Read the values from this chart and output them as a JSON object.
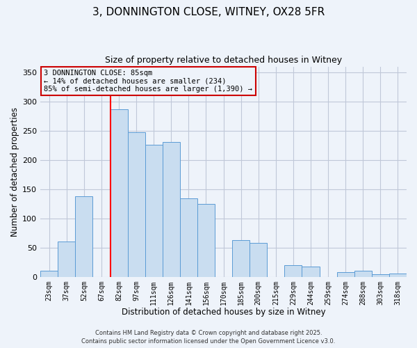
{
  "title": "3, DONNINGTON CLOSE, WITNEY, OX28 5FR",
  "subtitle": "Size of property relative to detached houses in Witney",
  "xlabel": "Distribution of detached houses by size in Witney",
  "ylabel": "Number of detached properties",
  "bar_labels": [
    "23sqm",
    "37sqm",
    "52sqm",
    "67sqm",
    "82sqm",
    "97sqm",
    "111sqm",
    "126sqm",
    "141sqm",
    "156sqm",
    "170sqm",
    "185sqm",
    "200sqm",
    "215sqm",
    "229sqm",
    "244sqm",
    "259sqm",
    "274sqm",
    "288sqm",
    "303sqm",
    "318sqm"
  ],
  "bar_values": [
    10,
    60,
    138,
    0,
    287,
    247,
    226,
    231,
    134,
    125,
    0,
    63,
    58,
    0,
    20,
    17,
    0,
    8,
    10,
    5,
    6
  ],
  "bar_color": "#c9ddf0",
  "bar_edge_color": "#5b9bd5",
  "grid_color": "#c0c8d8",
  "background_color": "#eef3fa",
  "vline_color": "red",
  "vline_x": 3.5,
  "annotation_title": "3 DONNINGTON CLOSE: 85sqm",
  "annotation_line1": "← 14% of detached houses are smaller (234)",
  "annotation_line2": "85% of semi-detached houses are larger (1,390) →",
  "annotation_box_edge": "#cc0000",
  "ylim": [
    0,
    360
  ],
  "yticks": [
    0,
    50,
    100,
    150,
    200,
    250,
    300,
    350
  ],
  "footer1": "Contains HM Land Registry data © Crown copyright and database right 2025.",
  "footer2": "Contains public sector information licensed under the Open Government Licence v3.0."
}
